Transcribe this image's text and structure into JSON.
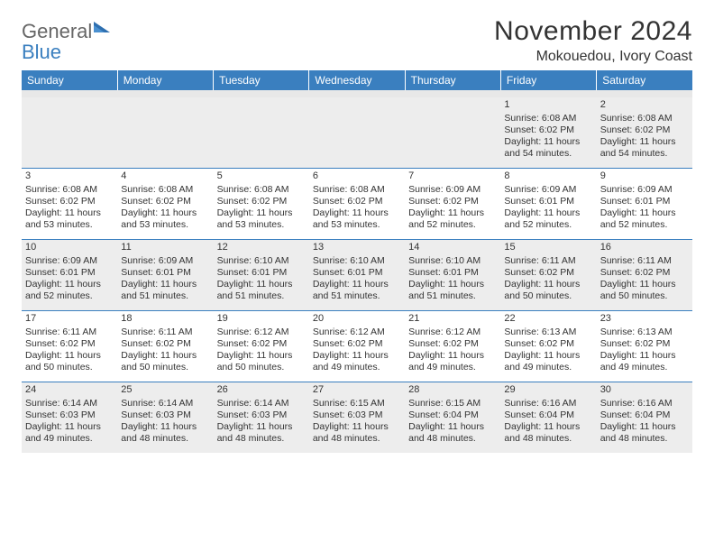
{
  "logo": {
    "word1": "General",
    "word2": "Blue"
  },
  "title": "November 2024",
  "location": "Mokouedou, Ivory Coast",
  "weekdays": [
    "Sunday",
    "Monday",
    "Tuesday",
    "Wednesday",
    "Thursday",
    "Friday",
    "Saturday"
  ],
  "colors": {
    "headerBar": "#3a7fbf",
    "shadedCell": "#ededed",
    "text": "#333333",
    "logoGray": "#666666",
    "logoBlue": "#3a7fbf",
    "background": "#ffffff"
  },
  "weeks": [
    [
      {
        "day": "",
        "sunrise": "",
        "sunset": "",
        "daylight": ""
      },
      {
        "day": "",
        "sunrise": "",
        "sunset": "",
        "daylight": ""
      },
      {
        "day": "",
        "sunrise": "",
        "sunset": "",
        "daylight": ""
      },
      {
        "day": "",
        "sunrise": "",
        "sunset": "",
        "daylight": ""
      },
      {
        "day": "",
        "sunrise": "",
        "sunset": "",
        "daylight": ""
      },
      {
        "day": "1",
        "sunrise": "Sunrise: 6:08 AM",
        "sunset": "Sunset: 6:02 PM",
        "daylight": "Daylight: 11 hours and 54 minutes."
      },
      {
        "day": "2",
        "sunrise": "Sunrise: 6:08 AM",
        "sunset": "Sunset: 6:02 PM",
        "daylight": "Daylight: 11 hours and 54 minutes."
      }
    ],
    [
      {
        "day": "3",
        "sunrise": "Sunrise: 6:08 AM",
        "sunset": "Sunset: 6:02 PM",
        "daylight": "Daylight: 11 hours and 53 minutes."
      },
      {
        "day": "4",
        "sunrise": "Sunrise: 6:08 AM",
        "sunset": "Sunset: 6:02 PM",
        "daylight": "Daylight: 11 hours and 53 minutes."
      },
      {
        "day": "5",
        "sunrise": "Sunrise: 6:08 AM",
        "sunset": "Sunset: 6:02 PM",
        "daylight": "Daylight: 11 hours and 53 minutes."
      },
      {
        "day": "6",
        "sunrise": "Sunrise: 6:08 AM",
        "sunset": "Sunset: 6:02 PM",
        "daylight": "Daylight: 11 hours and 53 minutes."
      },
      {
        "day": "7",
        "sunrise": "Sunrise: 6:09 AM",
        "sunset": "Sunset: 6:02 PM",
        "daylight": "Daylight: 11 hours and 52 minutes."
      },
      {
        "day": "8",
        "sunrise": "Sunrise: 6:09 AM",
        "sunset": "Sunset: 6:01 PM",
        "daylight": "Daylight: 11 hours and 52 minutes."
      },
      {
        "day": "9",
        "sunrise": "Sunrise: 6:09 AM",
        "sunset": "Sunset: 6:01 PM",
        "daylight": "Daylight: 11 hours and 52 minutes."
      }
    ],
    [
      {
        "day": "10",
        "sunrise": "Sunrise: 6:09 AM",
        "sunset": "Sunset: 6:01 PM",
        "daylight": "Daylight: 11 hours and 52 minutes."
      },
      {
        "day": "11",
        "sunrise": "Sunrise: 6:09 AM",
        "sunset": "Sunset: 6:01 PM",
        "daylight": "Daylight: 11 hours and 51 minutes."
      },
      {
        "day": "12",
        "sunrise": "Sunrise: 6:10 AM",
        "sunset": "Sunset: 6:01 PM",
        "daylight": "Daylight: 11 hours and 51 minutes."
      },
      {
        "day": "13",
        "sunrise": "Sunrise: 6:10 AM",
        "sunset": "Sunset: 6:01 PM",
        "daylight": "Daylight: 11 hours and 51 minutes."
      },
      {
        "day": "14",
        "sunrise": "Sunrise: 6:10 AM",
        "sunset": "Sunset: 6:01 PM",
        "daylight": "Daylight: 11 hours and 51 minutes."
      },
      {
        "day": "15",
        "sunrise": "Sunrise: 6:11 AM",
        "sunset": "Sunset: 6:02 PM",
        "daylight": "Daylight: 11 hours and 50 minutes."
      },
      {
        "day": "16",
        "sunrise": "Sunrise: 6:11 AM",
        "sunset": "Sunset: 6:02 PM",
        "daylight": "Daylight: 11 hours and 50 minutes."
      }
    ],
    [
      {
        "day": "17",
        "sunrise": "Sunrise: 6:11 AM",
        "sunset": "Sunset: 6:02 PM",
        "daylight": "Daylight: 11 hours and 50 minutes."
      },
      {
        "day": "18",
        "sunrise": "Sunrise: 6:11 AM",
        "sunset": "Sunset: 6:02 PM",
        "daylight": "Daylight: 11 hours and 50 minutes."
      },
      {
        "day": "19",
        "sunrise": "Sunrise: 6:12 AM",
        "sunset": "Sunset: 6:02 PM",
        "daylight": "Daylight: 11 hours and 50 minutes."
      },
      {
        "day": "20",
        "sunrise": "Sunrise: 6:12 AM",
        "sunset": "Sunset: 6:02 PM",
        "daylight": "Daylight: 11 hours and 49 minutes."
      },
      {
        "day": "21",
        "sunrise": "Sunrise: 6:12 AM",
        "sunset": "Sunset: 6:02 PM",
        "daylight": "Daylight: 11 hours and 49 minutes."
      },
      {
        "day": "22",
        "sunrise": "Sunrise: 6:13 AM",
        "sunset": "Sunset: 6:02 PM",
        "daylight": "Daylight: 11 hours and 49 minutes."
      },
      {
        "day": "23",
        "sunrise": "Sunrise: 6:13 AM",
        "sunset": "Sunset: 6:02 PM",
        "daylight": "Daylight: 11 hours and 49 minutes."
      }
    ],
    [
      {
        "day": "24",
        "sunrise": "Sunrise: 6:14 AM",
        "sunset": "Sunset: 6:03 PM",
        "daylight": "Daylight: 11 hours and 49 minutes."
      },
      {
        "day": "25",
        "sunrise": "Sunrise: 6:14 AM",
        "sunset": "Sunset: 6:03 PM",
        "daylight": "Daylight: 11 hours and 48 minutes."
      },
      {
        "day": "26",
        "sunrise": "Sunrise: 6:14 AM",
        "sunset": "Sunset: 6:03 PM",
        "daylight": "Daylight: 11 hours and 48 minutes."
      },
      {
        "day": "27",
        "sunrise": "Sunrise: 6:15 AM",
        "sunset": "Sunset: 6:03 PM",
        "daylight": "Daylight: 11 hours and 48 minutes."
      },
      {
        "day": "28",
        "sunrise": "Sunrise: 6:15 AM",
        "sunset": "Sunset: 6:04 PM",
        "daylight": "Daylight: 11 hours and 48 minutes."
      },
      {
        "day": "29",
        "sunrise": "Sunrise: 6:16 AM",
        "sunset": "Sunset: 6:04 PM",
        "daylight": "Daylight: 11 hours and 48 minutes."
      },
      {
        "day": "30",
        "sunrise": "Sunrise: 6:16 AM",
        "sunset": "Sunset: 6:04 PM",
        "daylight": "Daylight: 11 hours and 48 minutes."
      }
    ]
  ]
}
